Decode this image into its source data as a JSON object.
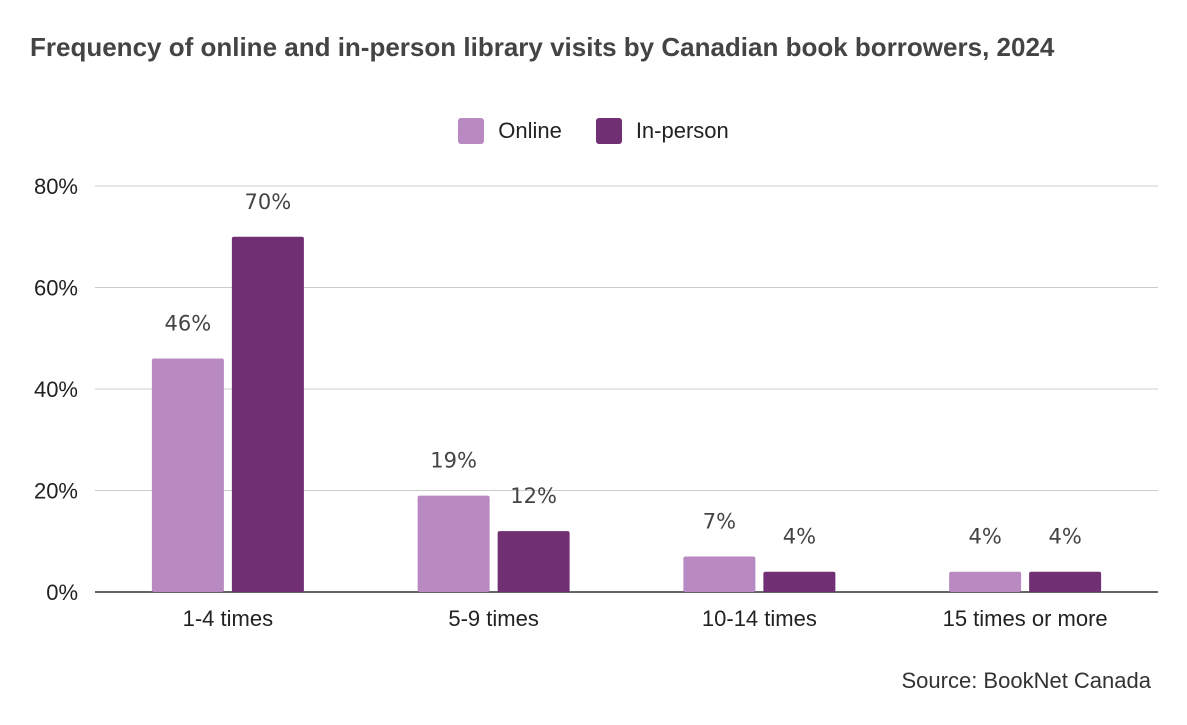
{
  "chart_data": {
    "type": "bar",
    "title": "Frequency of online and in-person library visits by Canadian book borrowers, 2024",
    "categories": [
      "1-4 times",
      "5-9 times",
      "10-14 times",
      "15 times or more"
    ],
    "series": [
      {
        "name": "Online",
        "color": "#b989c1",
        "values": [
          46,
          19,
          7,
          4
        ],
        "labels": [
          "46%",
          "19%",
          "7%",
          "4%"
        ]
      },
      {
        "name": "In-person",
        "color": "#712f74",
        "values": [
          70,
          12,
          4,
          4
        ],
        "labels": [
          "70%",
          "12%",
          "4%",
          "4%"
        ]
      }
    ],
    "ylim": [
      0,
      80
    ],
    "yticks": [
      0,
      20,
      40,
      60,
      80
    ],
    "ytick_labels": [
      "0%",
      "20%",
      "40%",
      "60%",
      "80%"
    ],
    "grid": true,
    "legend_position": "top-center",
    "source": "Source: BookNet Canada"
  }
}
